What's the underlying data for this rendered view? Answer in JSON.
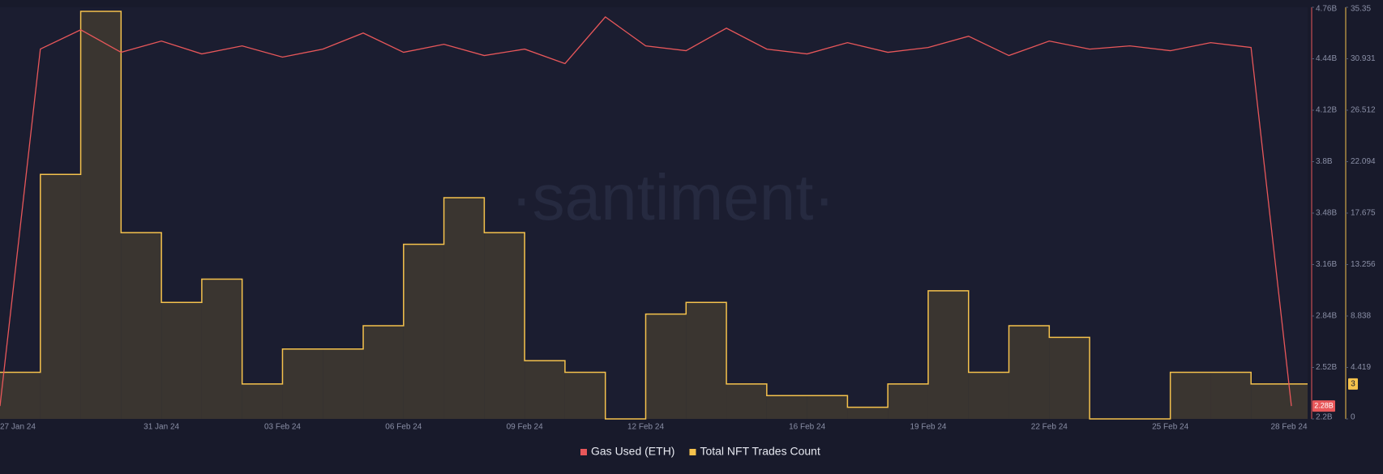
{
  "chart_data": {
    "type": "line-step-area",
    "watermark": "·santiment·",
    "x": [
      "27 Jan 24",
      "28 Jan 24",
      "29 Jan 24",
      "30 Jan 24",
      "31 Jan 24",
      "01 Feb 24",
      "02 Feb 24",
      "03 Feb 24",
      "04 Feb 24",
      "05 Feb 24",
      "06 Feb 24",
      "07 Feb 24",
      "08 Feb 24",
      "09 Feb 24",
      "10 Feb 24",
      "11 Feb 24",
      "12 Feb 24",
      "13 Feb 24",
      "14 Feb 24",
      "15 Feb 24",
      "16 Feb 24",
      "17 Feb 24",
      "18 Feb 24",
      "19 Feb 24",
      "20 Feb 24",
      "21 Feb 24",
      "22 Feb 24",
      "23 Feb 24",
      "24 Feb 24",
      "25 Feb 24",
      "26 Feb 24",
      "27 Feb 24",
      "28 Feb 24"
    ],
    "xticks": [
      "27 Jan 24",
      "31 Jan 24",
      "03 Feb 24",
      "06 Feb 24",
      "09 Feb 24",
      "12 Feb 24",
      "16 Feb 24",
      "19 Feb 24",
      "22 Feb 24",
      "25 Feb 24",
      "28 Feb 24"
    ],
    "series": [
      {
        "name": "Gas Used (ETH)",
        "color": "#e8575a",
        "axis": "y",
        "kind": "line",
        "last_label": "2.28B",
        "values": [
          2.28,
          4.5,
          4.62,
          4.48,
          4.55,
          4.47,
          4.52,
          4.45,
          4.5,
          4.6,
          4.48,
          4.53,
          4.46,
          4.5,
          4.41,
          4.7,
          4.52,
          4.49,
          4.63,
          4.5,
          4.47,
          4.54,
          4.48,
          4.51,
          4.58,
          4.46,
          4.55,
          4.5,
          4.52,
          4.49,
          4.54,
          4.51,
          2.28
        ]
      },
      {
        "name": "Total NFT Trades Count",
        "color": "#f5c24c",
        "axis": "y2",
        "kind": "step-area",
        "values": [
          4,
          21,
          35,
          16,
          10,
          12,
          3,
          6,
          6,
          8,
          15,
          19,
          16,
          5,
          4,
          0,
          9,
          10,
          3,
          2,
          2,
          1,
          3,
          11,
          4,
          8,
          7,
          0,
          0,
          4,
          4,
          3,
          3
        ]
      }
    ],
    "ylim": [
      2.2,
      4.76
    ],
    "yticks": [
      {
        "value": 2.2,
        "label": "2.2B"
      },
      {
        "value": 2.52,
        "label": "2.52B"
      },
      {
        "value": 2.84,
        "label": "2.84B"
      },
      {
        "value": 3.16,
        "label": "3.16B"
      },
      {
        "value": 3.48,
        "label": "3.48B"
      },
      {
        "value": 3.8,
        "label": "3.8B"
      },
      {
        "value": 4.12,
        "label": "4.12B"
      },
      {
        "value": 4.44,
        "label": "4.44B"
      },
      {
        "value": 4.76,
        "label": "4.76B"
      }
    ],
    "y2lim": [
      0,
      35.35
    ],
    "y2ticks": [
      0,
      4.419,
      8.838,
      13.256,
      17.675,
      22.094,
      26.512,
      30.931,
      35.35
    ],
    "legend": "bottom"
  }
}
